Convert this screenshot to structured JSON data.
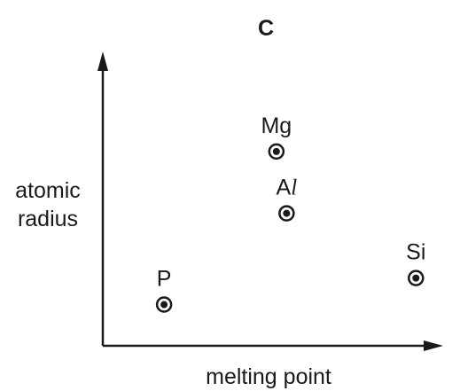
{
  "chart_data": {
    "type": "scatter",
    "title": "C",
    "xlabel": "melting point",
    "ylabel_lines": [
      "atomic",
      "radius"
    ],
    "points": [
      {
        "label": "Mg",
        "label_italic_tail": "",
        "x": 0.51,
        "y": 0.66
      },
      {
        "label": "A",
        "label_italic_tail": "l",
        "x": 0.54,
        "y": 0.45
      },
      {
        "label": "Si",
        "label_italic_tail": "",
        "x": 0.92,
        "y": 0.23
      },
      {
        "label": "P",
        "label_italic_tail": "",
        "x": 0.18,
        "y": 0.14
      }
    ],
    "xlim": [
      0,
      1
    ],
    "ylim": [
      0,
      1
    ],
    "grid": false,
    "axis_ticks": false
  }
}
